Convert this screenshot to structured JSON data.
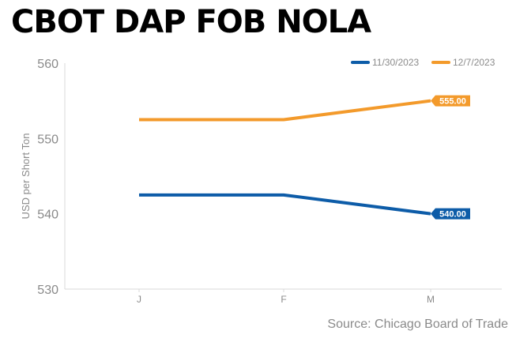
{
  "title": "CBOT DAP FOB NOLA",
  "source": "Source: Chicago Board of Trade",
  "chart_data": {
    "type": "line",
    "title": "CBOT DAP FOB NOLA",
    "xlabel": "",
    "ylabel": "USD per Short Ton",
    "categories": [
      "J",
      "F",
      "M"
    ],
    "ylim": [
      530,
      560
    ],
    "yticks": [
      530,
      540,
      550,
      560
    ],
    "grid": false,
    "legend_position": "top-right",
    "series": [
      {
        "name": "11/30/2023",
        "color": "#0d5ca8",
        "values": [
          542.5,
          542.5,
          540.0
        ],
        "end_label": "540.00"
      },
      {
        "name": "12/7/2023",
        "color": "#f39a2b",
        "values": [
          552.5,
          552.5,
          555.0
        ],
        "end_label": "555.00"
      }
    ]
  }
}
